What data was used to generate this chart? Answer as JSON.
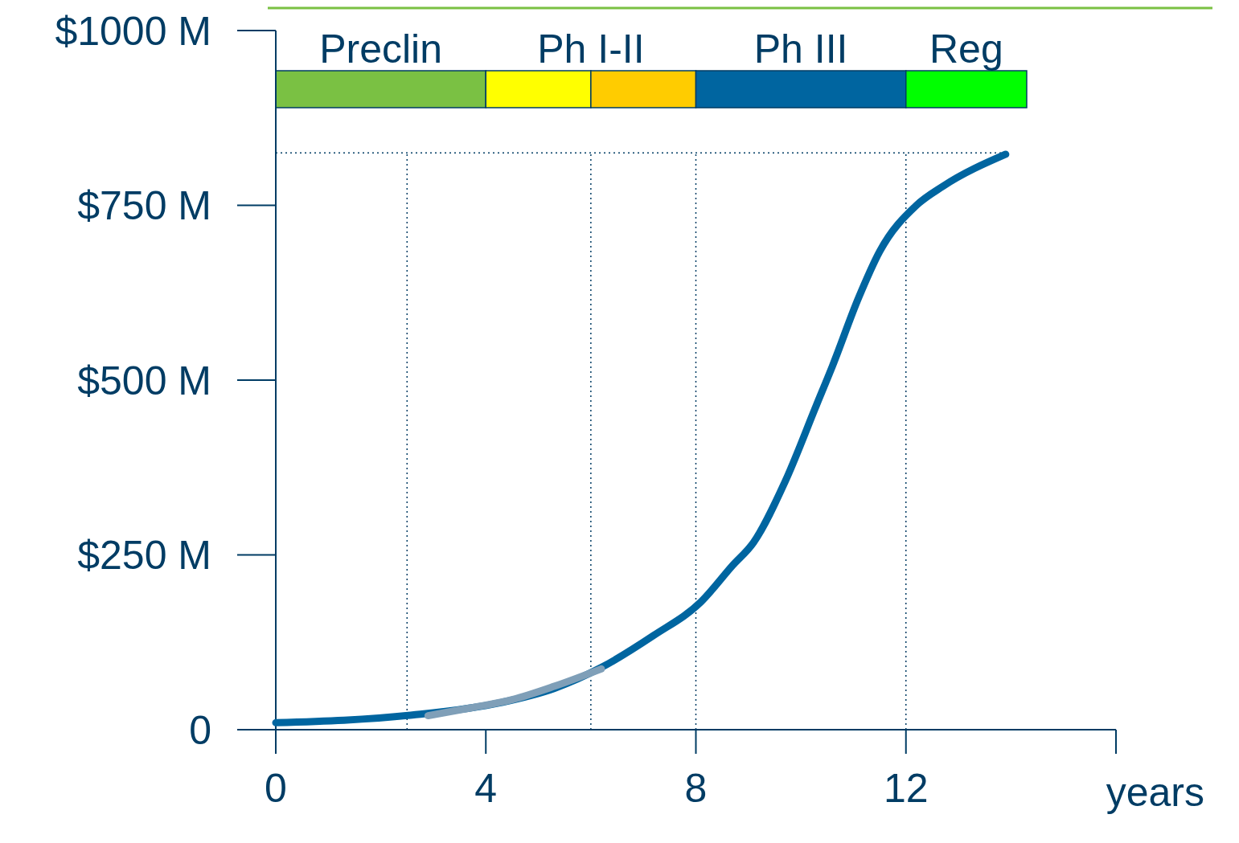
{
  "chart_data": {
    "type": "line",
    "xlabel": "years",
    "xlim": [
      0,
      16
    ],
    "xticks": [
      0,
      4,
      8,
      12
    ],
    "ylim": [
      0,
      1000
    ],
    "yticks": [
      {
        "value": 0,
        "label": "0"
      },
      {
        "value": 250,
        "label": "$250 M"
      },
      {
        "value": 500,
        "label": "$500 M"
      },
      {
        "value": 750,
        "label": "$750 M"
      },
      {
        "value": 1000,
        "label": "$1000 M"
      }
    ],
    "grid": false,
    "marker": "none",
    "line_style": "solid",
    "series": [
      {
        "color": "#0065a0",
        "x": [
          0,
          2.6,
          4.3,
          5.3,
          6.2,
          7.2,
          8.1,
          8.7,
          9.1,
          9.7,
          10.3,
          10.6,
          11.1,
          11.5,
          12.2,
          12.7,
          13.9
        ],
        "values": [
          10,
          21,
          39,
          59,
          89,
          135,
          183,
          235,
          268,
          355,
          465,
          520,
          618,
          684,
          750,
          777,
          823
        ]
      },
      {
        "color": "#7f9fb8",
        "x": [
          2.9,
          3.7,
          4.5,
          5.3,
          6.2
        ],
        "values": [
          20,
          31,
          43,
          62,
          87
        ]
      }
    ],
    "bands": [
      {
        "axis": "x",
        "from": 0,
        "to": 4,
        "label": "Preclin",
        "color": "#7ac143"
      },
      {
        "axis": "x",
        "from": 4,
        "to": 6,
        "label": "Ph I-II",
        "color": "#ffff00"
      },
      {
        "axis": "x",
        "from": 6,
        "to": 8,
        "label": null,
        "color": "#ffcc00"
      },
      {
        "axis": "x",
        "from": 8,
        "to": 12,
        "label": "Ph III",
        "color": "#0065a0"
      },
      {
        "axis": "x",
        "from": 12,
        "to": 14.3,
        "label": "Reg",
        "color": "#00ff00"
      }
    ],
    "ref_lines": [
      {
        "axis": "x",
        "value": 2.5,
        "line_style": "dotted"
      },
      {
        "axis": "x",
        "value": 6,
        "line_style": "dotted"
      },
      {
        "axis": "x",
        "value": 8,
        "line_style": "dotted"
      },
      {
        "axis": "x",
        "value": 12,
        "line_style": "dotted"
      },
      {
        "axis": "y",
        "value": 825,
        "line_style": "dotted"
      }
    ]
  }
}
